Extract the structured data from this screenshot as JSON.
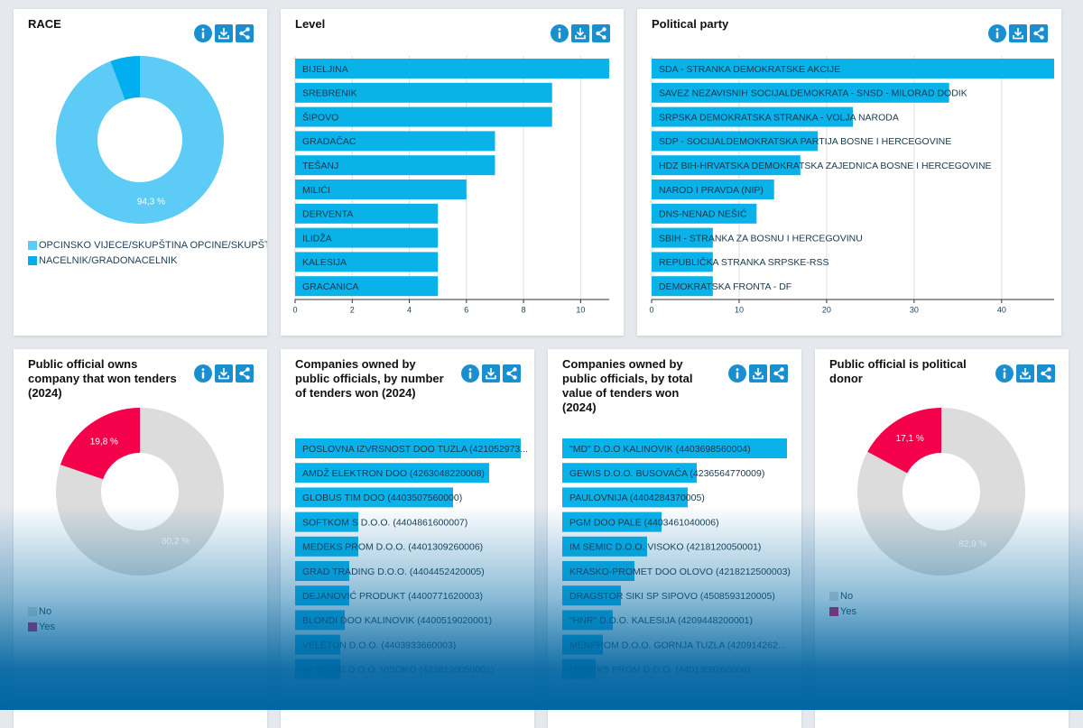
{
  "chart_data": [
    {
      "type": "pie",
      "donut": true,
      "title": "RACE",
      "categories": [
        "OPCINSKO VIJECE/SKUPŠTINA OPCINE/SKUPŠTI...",
        "NACELNIK/GRADONACELNIK"
      ],
      "values": [
        94.3,
        5.7
      ],
      "value_labels": [
        "94,3 %",
        null
      ],
      "colors": [
        "#5ccbf5",
        "#00aeef"
      ]
    },
    {
      "type": "bar",
      "orientation": "horizontal",
      "title": "Level",
      "categories": [
        "BIJELJINA",
        "SREBRENIK",
        "ŠIPOVO",
        "GRADAČAC",
        "TEŠANJ",
        "MILIĆI",
        "DERVENTA",
        "ILIDŽA",
        "KALESIJA",
        "GRACANICA"
      ],
      "values": [
        11,
        9,
        9,
        7,
        7,
        6,
        5,
        5,
        5,
        5
      ],
      "color": "#0ab2ea",
      "xlim": [
        0,
        11
      ],
      "xticks": [
        0,
        2,
        4,
        6,
        8,
        10
      ],
      "grid": true
    },
    {
      "type": "bar",
      "orientation": "horizontal",
      "title": "Political party",
      "categories": [
        "SDA - STRANKA DEMOKRATSKE AKCIJE",
        "SAVEZ NEZAVISNIH SOCIJALDEMOKRATA - SNSD - MILORAD DODIK",
        "SRPSKA DEMOKRATSKA STRANKA - VOLJA NARODA",
        "SDP - SOCIJALDEMOKRATSKA PARTIJA BOSNE I HERCEGOVINE",
        "HDZ BIH-HRVATSKA DEMOKRATSKA ZAJEDNICA BOSNE I HERCEGOVINE",
        "NAROD I PRAVDA (NIP)",
        "DNS-NENAD NEŠIĆ",
        "SBIH - STRANKA ZA BOSNU I HERCEGOVINU",
        "REPUBLIČKA STRANKA SRPSKE-RSS",
        "DEMOKRATSKA FRONTA - DF"
      ],
      "values": [
        46,
        34,
        23,
        19,
        17,
        14,
        12,
        7,
        7,
        7
      ],
      "color": "#0ab2ea",
      "xlim": [
        0,
        46
      ],
      "xticks": [
        0,
        10,
        20,
        30,
        40
      ],
      "grid": true
    },
    {
      "type": "pie",
      "donut": true,
      "title": "Public official owns company that won tenders (2024)",
      "categories": [
        "No",
        "Yes"
      ],
      "values": [
        80.2,
        19.8
      ],
      "value_labels": [
        "80,2 %",
        "19,8 %"
      ],
      "colors": [
        "#dcdcdc",
        "#f5004a"
      ]
    },
    {
      "type": "bar",
      "orientation": "horizontal",
      "title": "Companies owned by public officials, by number of tenders won (2024)",
      "categories": [
        "POSLOVNA IZVRSNOST DOO TUZLA (421052973...",
        "AMDŽ ELEKTRON DOO (4263048220008)",
        "GLOBUS TIM DOO (4403507560000)",
        "SOFTKOM S D.O.O. (4404861600007)",
        "MEDEKS PROM D.O.O. (4401309260006)",
        "GRAD TRADING D.O.O. (4404452420005)",
        "DEJANOVIĆ PRODUKT (4400771620003)",
        "BLONDI DOO KALINOVIK (4400519020001)",
        "VELETON D.O.O. (4403933660003)",
        "IM SEMIC D.O.O. VISOKO (4218120050001)"
      ],
      "values": [
        50,
        43,
        35,
        14,
        14,
        12,
        12,
        11,
        10,
        10
      ],
      "color": "#0ab2ea",
      "xlim": [
        0,
        50
      ]
    },
    {
      "type": "bar",
      "orientation": "horizontal",
      "title": "Companies owned by public officials, by total value of tenders won (2024)",
      "categories": [
        "\"MD\" D.O.O KALINOVIK (4403698560004)",
        "GEWIS D.O.O. BUSOVAČA (4236564770009)",
        "PAULOVNIJA (4404284370005)",
        "PGM DOO PALE (4403461040006)",
        "IM SEMIC D.O.O. VISOKO (4218120050001)",
        "KRASKO-PROMET DOO OLOVO (4218212500003)",
        "DRAGSTOR SIKI SP SIPOVO (4508593120005)",
        "\"HNR\" D.O.O. KALESIJA (4209448200001)",
        "MENPROM D.O.O. GORNJA TUZLA (420914262...",
        "MEDEKS PROM D.O.O. (4401309260006)"
      ],
      "values": [
        249,
        149,
        139,
        110,
        94,
        80,
        65,
        56,
        45,
        37
      ],
      "color": "#0ab2ea",
      "xlim": [
        0,
        250
      ]
    },
    {
      "type": "pie",
      "donut": true,
      "title": "Public official is political donor",
      "categories": [
        "No",
        "Yes"
      ],
      "values": [
        82.9,
        17.1
      ],
      "value_labels": [
        "82,9 %",
        "17,1 %"
      ],
      "colors": [
        "#dcdcdc",
        "#f5004a"
      ]
    }
  ]
}
